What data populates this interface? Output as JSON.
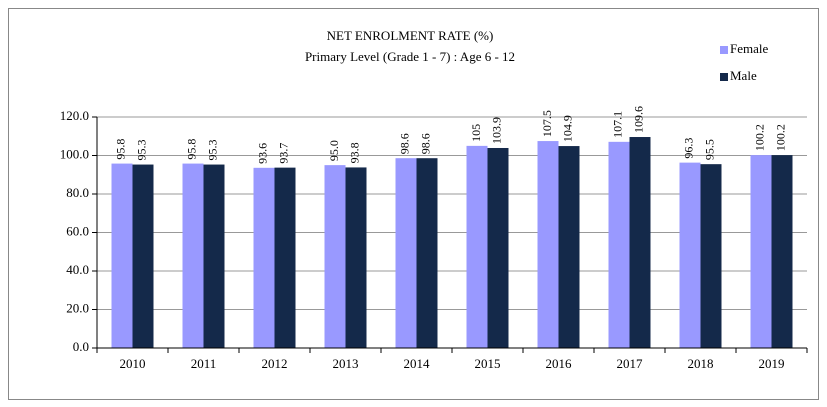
{
  "chart_data": {
    "type": "bar",
    "title": "NET ENROLMENT RATE (%)",
    "subtitle": "Primary Level (Grade 1 - 7) : Age 6 - 12",
    "categories": [
      "2010",
      "2011",
      "2012",
      "2013",
      "2014",
      "2015",
      "2016",
      "2017",
      "2018",
      "2019"
    ],
    "series": [
      {
        "name": "Female",
        "color": "#9999ff",
        "values": [
          95.8,
          95.8,
          93.6,
          95.0,
          98.6,
          105,
          107.5,
          107.1,
          96.3,
          100.2
        ],
        "value_labels": [
          "95.8",
          "95.8",
          "93.6",
          "95.0",
          "98.6",
          "105",
          "107.5",
          "107.1",
          "96.3",
          "100.2"
        ]
      },
      {
        "name": "Male",
        "color": "#14294a",
        "values": [
          95.3,
          95.3,
          93.7,
          93.8,
          98.6,
          103.9,
          104.9,
          109.6,
          95.5,
          100.2
        ],
        "value_labels": [
          "95.3",
          "95.3",
          "93.7",
          "93.8",
          "98.6",
          "103.9",
          "104.9",
          "109.6",
          "95.5",
          "100.2"
        ]
      }
    ],
    "ylim": [
      0,
      120
    ],
    "yticks": [
      {
        "value": 0,
        "label": "0.0"
      },
      {
        "value": 20,
        "label": "20.0"
      },
      {
        "value": 40,
        "label": "40.0"
      },
      {
        "value": 60,
        "label": "60.0"
      },
      {
        "value": 80,
        "label": "80.0"
      },
      {
        "value": 100,
        "label": "100.0"
      },
      {
        "value": 120,
        "label": "120.0"
      }
    ],
    "grid": true
  }
}
